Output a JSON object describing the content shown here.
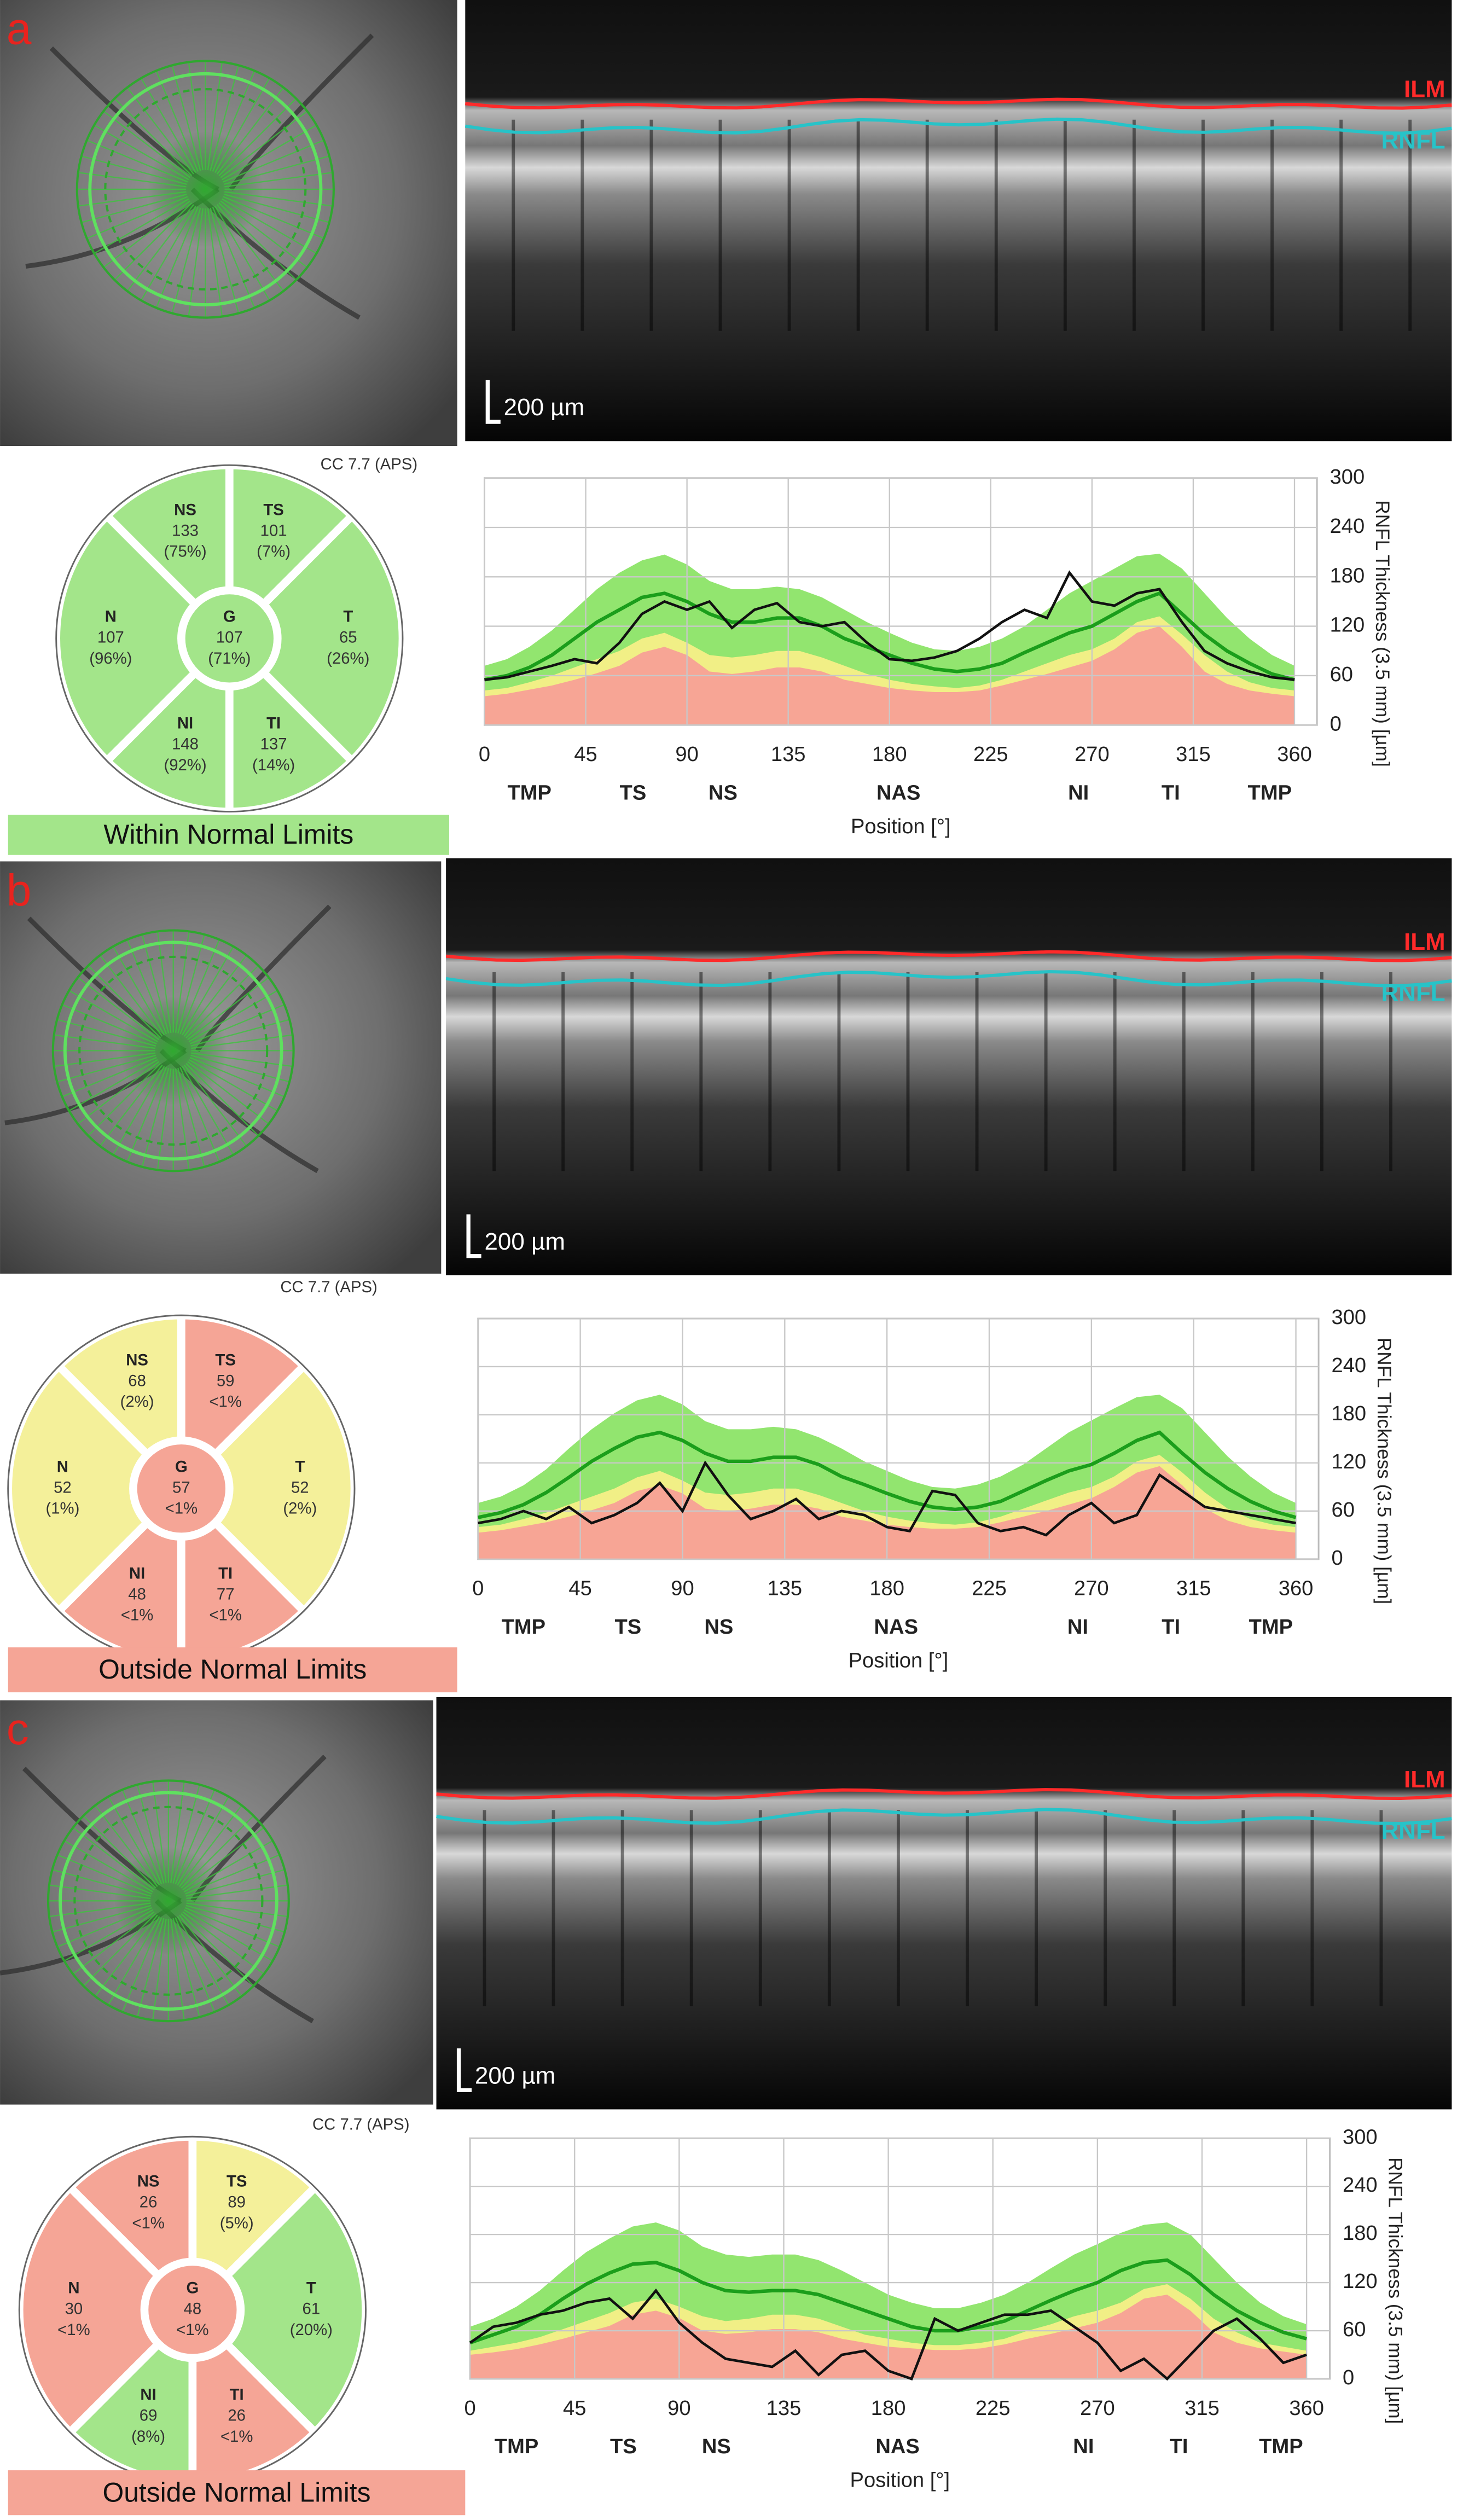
{
  "panels": [
    {
      "label": "a",
      "oct": {
        "ilm": "ILM",
        "rnfl": "RNFL",
        "scale_bar": "200 µm"
      },
      "sector_chart": {
        "quality": "CC 7.7 (APS)",
        "sectors": [
          {
            "name": "NS",
            "value": 133,
            "percentile": "(75%)",
            "color": "#a3e58a"
          },
          {
            "name": "TS",
            "value": 101,
            "percentile": "(7%)",
            "color": "#a3e58a"
          },
          {
            "name": "N",
            "value": 107,
            "percentile": "(96%)",
            "color": "#a3e58a"
          },
          {
            "name": "G",
            "value": 107,
            "percentile": "(71%)",
            "color": "#a3e58a"
          },
          {
            "name": "T",
            "value": 65,
            "percentile": "(26%)",
            "color": "#a3e58a"
          },
          {
            "name": "NI",
            "value": 148,
            "percentile": "(92%)",
            "color": "#a3e58a"
          },
          {
            "name": "TI",
            "value": 137,
            "percentile": "(14%)",
            "color": "#a3e58a"
          }
        ],
        "classification": "Within Normal Limits",
        "classification_color": "#a3e58a"
      }
    },
    {
      "label": "b",
      "oct": {
        "ilm": "ILM",
        "rnfl": "RNFL",
        "scale_bar": "200 µm"
      },
      "sector_chart": {
        "quality": "CC 7.7 (APS)",
        "sectors": [
          {
            "name": "NS",
            "value": 68,
            "percentile": "(2%)",
            "color": "#f4f09a"
          },
          {
            "name": "TS",
            "value": 59,
            "percentile": "<1%",
            "color": "#f5a596"
          },
          {
            "name": "N",
            "value": 52,
            "percentile": "(1%)",
            "color": "#f4f09a"
          },
          {
            "name": "G",
            "value": 57,
            "percentile": "<1%",
            "color": "#f5a596"
          },
          {
            "name": "T",
            "value": 52,
            "percentile": "(2%)",
            "color": "#f4f09a"
          },
          {
            "name": "NI",
            "value": 48,
            "percentile": "<1%",
            "color": "#f5a596"
          },
          {
            "name": "TI",
            "value": 77,
            "percentile": "<1%",
            "color": "#f5a596"
          }
        ],
        "classification": "Outside Normal Limits",
        "classification_color": "#f5a596"
      }
    },
    {
      "label": "c",
      "oct": {
        "ilm": "ILM",
        "rnfl": "RNFL",
        "scale_bar": "200 µm"
      },
      "sector_chart": {
        "quality": "CC 7.7 (APS)",
        "sectors": [
          {
            "name": "NS",
            "value": 26,
            "percentile": "<1%",
            "color": "#f5a596"
          },
          {
            "name": "TS",
            "value": 89,
            "percentile": "(5%)",
            "color": "#f4f09a"
          },
          {
            "name": "N",
            "value": 30,
            "percentile": "<1%",
            "color": "#f5a596"
          },
          {
            "name": "G",
            "value": 48,
            "percentile": "<1%",
            "color": "#f5a596"
          },
          {
            "name": "T",
            "value": 61,
            "percentile": "(20%)",
            "color": "#a3e58a"
          },
          {
            "name": "NI",
            "value": 69,
            "percentile": "(8%)",
            "color": "#a3e58a"
          },
          {
            "name": "TI",
            "value": 26,
            "percentile": "<1%",
            "color": "#f5a596"
          }
        ],
        "classification": "Outside Normal Limits",
        "classification_color": "#f5a596"
      }
    }
  ],
  "chart_data": [
    {
      "type": "line",
      "ylabel": "RNFL Thickness (3.5 mm) [µm]",
      "xlabel": "Position [°]",
      "x": [
        0,
        10,
        20,
        30,
        40,
        50,
        60,
        70,
        80,
        90,
        100,
        110,
        120,
        130,
        140,
        150,
        160,
        170,
        180,
        190,
        200,
        210,
        220,
        230,
        240,
        250,
        260,
        270,
        280,
        290,
        300,
        310,
        320,
        330,
        340,
        350,
        360
      ],
      "xlim": [
        0,
        370
      ],
      "xticks": [
        0,
        45,
        90,
        135,
        180,
        225,
        270,
        315,
        360
      ],
      "ylim": [
        0,
        300
      ],
      "yticks": [
        0,
        60,
        120,
        180,
        240,
        300
      ],
      "grid": true,
      "x_annotations": {
        "x": [
          20,
          66,
          106,
          184,
          264,
          305,
          349
        ],
        "labels": [
          "TMP",
          "TS",
          "NS",
          "NAS",
          "NI",
          "TI",
          "TMP"
        ]
      },
      "series": [
        {
          "color": "#92e56f",
          "fill": true,
          "values": [
            72,
            80,
            95,
            115,
            140,
            165,
            185,
            200,
            207,
            195,
            175,
            165,
            165,
            168,
            165,
            155,
            140,
            125,
            112,
            100,
            92,
            90,
            95,
            105,
            120,
            140,
            160,
            175,
            190,
            205,
            208,
            190,
            160,
            130,
            105,
            85,
            72
          ]
        },
        {
          "color": "#f1ef86",
          "fill": true,
          "values": [
            42,
            45,
            52,
            60,
            70,
            80,
            90,
            105,
            112,
            100,
            85,
            82,
            85,
            90,
            90,
            82,
            72,
            62,
            55,
            50,
            47,
            45,
            48,
            55,
            65,
            75,
            85,
            92,
            105,
            125,
            132,
            110,
            85,
            65,
            52,
            45,
            42
          ]
        },
        {
          "color": "#f7a595",
          "fill": true,
          "values": [
            35,
            38,
            43,
            48,
            55,
            63,
            72,
            88,
            95,
            85,
            65,
            62,
            65,
            70,
            70,
            65,
            55,
            50,
            45,
            42,
            40,
            40,
            42,
            48,
            55,
            62,
            70,
            78,
            92,
            112,
            120,
            95,
            65,
            50,
            42,
            38,
            35
          ]
        },
        {
          "color": "#1b9e1b",
          "fill": false,
          "values": [
            55,
            60,
            70,
            85,
            105,
            125,
            140,
            155,
            160,
            150,
            135,
            125,
            125,
            130,
            130,
            120,
            105,
            95,
            85,
            75,
            68,
            65,
            68,
            75,
            88,
            100,
            112,
            120,
            135,
            150,
            160,
            135,
            110,
            90,
            75,
            62,
            55
          ]
        },
        {
          "color": "#111111",
          "fill": false,
          "values": [
            55,
            58,
            65,
            72,
            80,
            75,
            100,
            135,
            150,
            140,
            150,
            118,
            140,
            148,
            125,
            120,
            125,
            100,
            80,
            78,
            82,
            90,
            105,
            125,
            140,
            130,
            185,
            150,
            145,
            160,
            165,
            125,
            90,
            75,
            65,
            58,
            55
          ]
        }
      ]
    },
    {
      "type": "line",
      "ylabel": "RNFL Thickness (3.5 mm) [µm]",
      "xlabel": "Position [°]",
      "x": [
        0,
        10,
        20,
        30,
        40,
        50,
        60,
        70,
        80,
        90,
        100,
        110,
        120,
        130,
        140,
        150,
        160,
        170,
        180,
        190,
        200,
        210,
        220,
        230,
        240,
        250,
        260,
        270,
        280,
        290,
        300,
        310,
        320,
        330,
        340,
        350,
        360
      ],
      "xlim": [
        0,
        370
      ],
      "xticks": [
        0,
        45,
        90,
        135,
        180,
        225,
        270,
        315,
        360
      ],
      "ylim": [
        0,
        300
      ],
      "yticks": [
        0,
        60,
        120,
        180,
        240,
        300
      ],
      "grid": true,
      "x_annotations": {
        "x": [
          20,
          66,
          106,
          184,
          264,
          305,
          349
        ],
        "labels": [
          "TMP",
          "TS",
          "NS",
          "NAS",
          "NI",
          "TI",
          "TMP"
        ]
      },
      "series": [
        {
          "color": "#92e56f",
          "fill": true,
          "values": [
            70,
            78,
            92,
            112,
            138,
            162,
            182,
            198,
            205,
            193,
            172,
            162,
            162,
            165,
            162,
            152,
            138,
            122,
            110,
            98,
            90,
            88,
            93,
            103,
            118,
            138,
            158,
            173,
            188,
            202,
            205,
            188,
            158,
            128,
            103,
            83,
            70
          ]
        },
        {
          "color": "#f1ef86",
          "fill": true,
          "values": [
            40,
            43,
            50,
            58,
            68,
            78,
            88,
            102,
            110,
            98,
            83,
            80,
            83,
            88,
            88,
            80,
            70,
            60,
            53,
            48,
            45,
            43,
            46,
            53,
            63,
            73,
            83,
            90,
            103,
            122,
            130,
            108,
            83,
            63,
            50,
            43,
            40
          ]
        },
        {
          "color": "#f7a595",
          "fill": true,
          "values": [
            33,
            36,
            41,
            46,
            53,
            61,
            70,
            85,
            92,
            82,
            63,
            60,
            63,
            68,
            68,
            63,
            53,
            48,
            43,
            40,
            38,
            38,
            40,
            46,
            53,
            60,
            68,
            76,
            90,
            108,
            116,
            92,
            63,
            48,
            40,
            36,
            33
          ]
        },
        {
          "color": "#1b9e1b",
          "fill": false,
          "values": [
            52,
            58,
            68,
            83,
            102,
            122,
            138,
            152,
            158,
            148,
            132,
            122,
            122,
            127,
            127,
            118,
            103,
            93,
            82,
            72,
            65,
            62,
            65,
            72,
            85,
            98,
            110,
            118,
            132,
            148,
            158,
            132,
            108,
            88,
            72,
            60,
            52
          ]
        },
        {
          "color": "#111111",
          "fill": false,
          "values": [
            45,
            50,
            60,
            50,
            65,
            45,
            55,
            70,
            95,
            60,
            120,
            80,
            50,
            60,
            75,
            50,
            60,
            55,
            40,
            35,
            85,
            80,
            45,
            35,
            40,
            30,
            55,
            70,
            45,
            55,
            105,
            85,
            65,
            60,
            55,
            50,
            45
          ]
        }
      ]
    },
    {
      "type": "line",
      "ylabel": "RNFL Thickness (3.5 mm) [µm]",
      "xlabel": "Position [°]",
      "x": [
        0,
        10,
        20,
        30,
        40,
        50,
        60,
        70,
        80,
        90,
        100,
        110,
        120,
        130,
        140,
        150,
        160,
        170,
        180,
        190,
        200,
        210,
        220,
        230,
        240,
        250,
        260,
        270,
        280,
        290,
        300,
        310,
        320,
        330,
        340,
        350,
        360
      ],
      "xlim": [
        0,
        370
      ],
      "xticks": [
        0,
        45,
        90,
        135,
        180,
        225,
        270,
        315,
        360
      ],
      "ylim": [
        0,
        300
      ],
      "yticks": [
        0,
        60,
        120,
        180,
        240,
        300
      ],
      "grid": true,
      "x_annotations": {
        "x": [
          20,
          66,
          106,
          184,
          264,
          305,
          349
        ],
        "labels": [
          "TMP",
          "TS",
          "NS",
          "NAS",
          "NI",
          "TI",
          "TMP"
        ]
      },
      "series": [
        {
          "color": "#92e56f",
          "fill": true,
          "values": [
            65,
            75,
            90,
            110,
            135,
            158,
            175,
            190,
            195,
            185,
            165,
            155,
            152,
            155,
            155,
            148,
            135,
            120,
            105,
            95,
            88,
            88,
            95,
            105,
            120,
            138,
            155,
            168,
            182,
            192,
            195,
            180,
            150,
            120,
            95,
            78,
            68
          ]
        },
        {
          "color": "#f1ef86",
          "fill": true,
          "values": [
            35,
            40,
            45,
            52,
            62,
            72,
            82,
            95,
            100,
            90,
            78,
            72,
            75,
            80,
            80,
            75,
            65,
            55,
            50,
            45,
            42,
            42,
            45,
            50,
            60,
            68,
            78,
            85,
            95,
            112,
            118,
            100,
            75,
            58,
            45,
            40,
            35
          ]
        },
        {
          "color": "#f7a595",
          "fill": true,
          "values": [
            30,
            33,
            37,
            43,
            50,
            58,
            66,
            80,
            85,
            76,
            60,
            56,
            58,
            62,
            62,
            58,
            50,
            45,
            40,
            38,
            36,
            36,
            38,
            43,
            50,
            56,
            63,
            70,
            82,
            100,
            105,
            85,
            58,
            45,
            38,
            34,
            30
          ]
        },
        {
          "color": "#1b9e1b",
          "fill": false,
          "values": [
            45,
            55,
            65,
            80,
            100,
            118,
            132,
            143,
            145,
            135,
            120,
            110,
            108,
            110,
            110,
            105,
            95,
            85,
            75,
            65,
            60,
            60,
            65,
            72,
            85,
            98,
            110,
            120,
            135,
            145,
            148,
            130,
            105,
            85,
            70,
            58,
            50
          ]
        },
        {
          "color": "#111111",
          "fill": false,
          "values": [
            45,
            65,
            70,
            80,
            85,
            95,
            100,
            75,
            110,
            70,
            45,
            25,
            20,
            15,
            35,
            5,
            30,
            35,
            10,
            0,
            75,
            60,
            70,
            80,
            80,
            85,
            65,
            45,
            10,
            25,
            0,
            30,
            60,
            75,
            50,
            20,
            30
          ]
        }
      ]
    }
  ]
}
